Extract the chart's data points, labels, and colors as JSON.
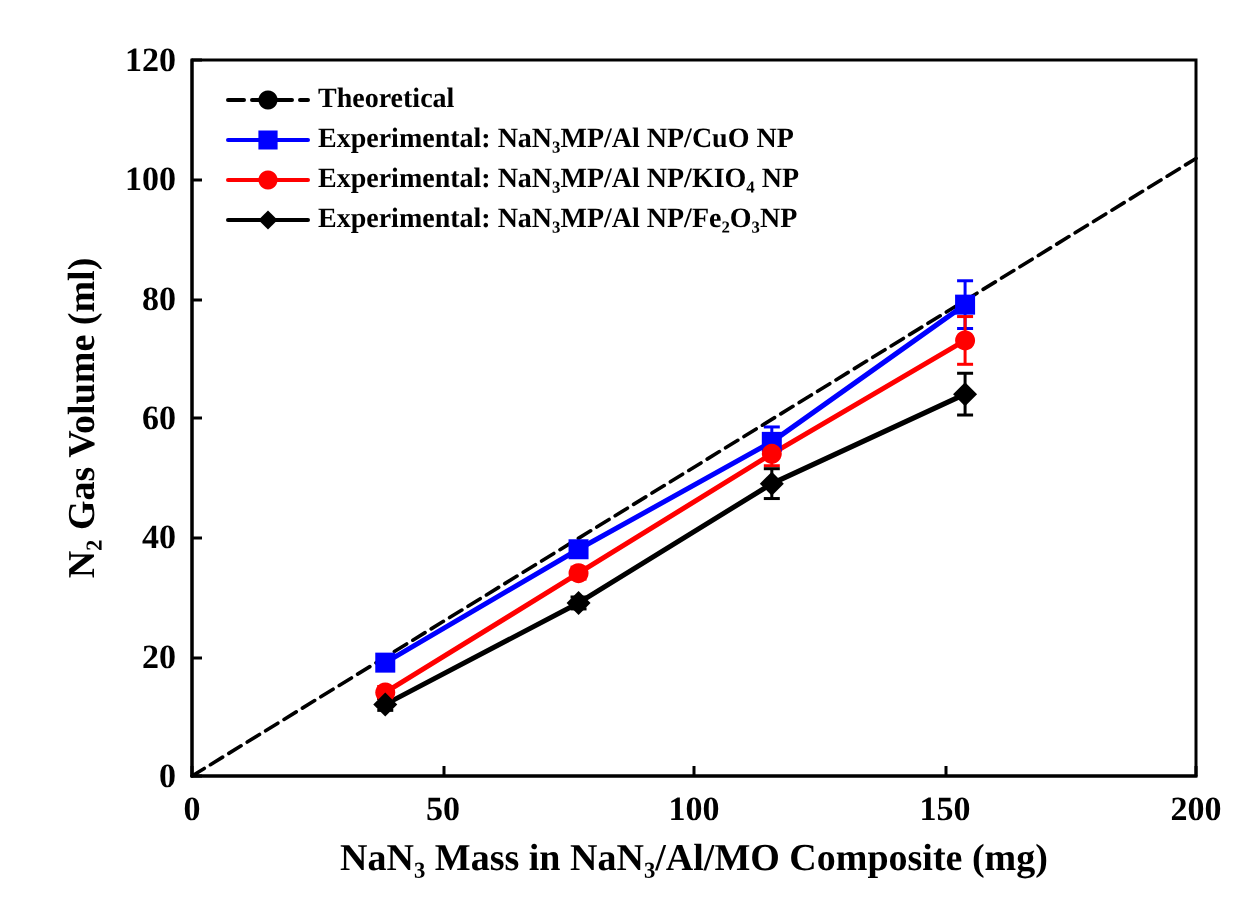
{
  "chart_data": {
    "type": "line",
    "xlabel": "NaN₃ Mass in NaN₃/Al/MO Composite (mg)",
    "ylabel": "N₂ Gas Volume (ml)",
    "x": [
      38.5,
      77,
      115.5,
      154
    ],
    "series": [
      {
        "name": "Theoretical",
        "color": "#000000",
        "x": [
          0,
          200
        ],
        "values": [
          0,
          103.5
        ],
        "marker": "none",
        "line_style": "dashed"
      },
      {
        "name": "Experimental: NaN₃MP/Al NP/CuO NP",
        "color": "#0000ff",
        "values": [
          19,
          38,
          56,
          79
        ],
        "errors": [
          1,
          1,
          2.5,
          4
        ],
        "marker": "square",
        "line_style": "solid"
      },
      {
        "name": "Experimental: NaN₃MP/Al NP/KIO₄ NP",
        "color": "#ff0000",
        "values": [
          14,
          34,
          54,
          73
        ],
        "errors": [
          1,
          1,
          2,
          4
        ],
        "marker": "circle",
        "line_style": "solid"
      },
      {
        "name": "Experimental: NaN₃MP/Al NP/Fe₂O₃NP",
        "color": "#000000",
        "values": [
          12,
          29,
          49,
          64
        ],
        "errors": [
          1,
          1,
          2.5,
          3.5
        ],
        "marker": "diamond",
        "line_style": "solid"
      }
    ],
    "xlim": [
      0,
      200
    ],
    "xticks": [
      0,
      50,
      100,
      150,
      200
    ],
    "ylim": [
      0,
      120
    ],
    "yticks": [
      0,
      20,
      40,
      60,
      80,
      100,
      120
    ],
    "grid": false,
    "legend": "top left"
  }
}
